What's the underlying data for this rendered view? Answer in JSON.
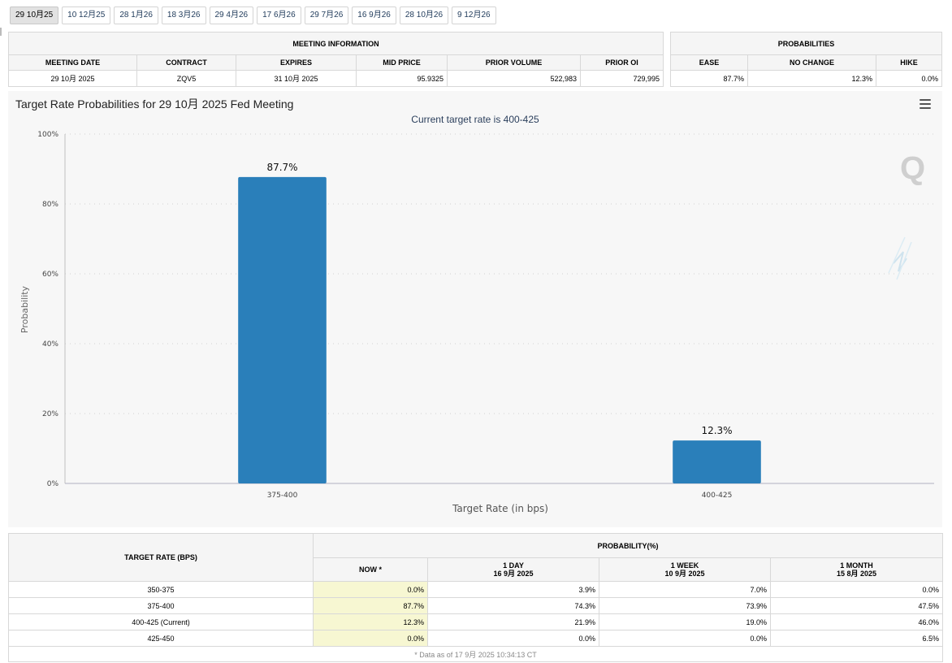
{
  "tabs": [
    "29 10月25",
    "10 12月25",
    "28 1月26",
    "18 3月26",
    "29 4月26",
    "17 6月26",
    "29 7月26",
    "16 9月26",
    "28 10月26",
    "9 12月26"
  ],
  "active_tab": 0,
  "meeting_info": {
    "header": "MEETING INFORMATION",
    "columns": [
      "MEETING DATE",
      "CONTRACT",
      "EXPIRES",
      "MID PRICE",
      "PRIOR VOLUME",
      "PRIOR OI"
    ],
    "row": [
      "29 10月 2025",
      "ZQV5",
      "31 10月 2025",
      "95.9325",
      "522,983",
      "729,995"
    ]
  },
  "probabilities": {
    "header": "PROBABILITIES",
    "columns": [
      "EASE",
      "NO CHANGE",
      "HIKE"
    ],
    "row": [
      "87.7%",
      "12.3%",
      "0.0%"
    ]
  },
  "chart_data": {
    "type": "bar",
    "title": "Target Rate Probabilities for 29 10月 2025 Fed Meeting",
    "subtitle": "Current target rate is 400-425",
    "xlabel": "Target Rate (in bps)",
    "ylabel": "Probability",
    "categories": [
      "375-400",
      "400-425"
    ],
    "values": [
      87.7,
      12.3
    ],
    "data_labels": [
      "87.7%",
      "12.3%"
    ],
    "ylim": [
      0,
      100
    ],
    "yticks": [
      "0%",
      "20%",
      "40%",
      "60%",
      "80%",
      "100%"
    ],
    "grid": true,
    "bar_color": "#2a7fba"
  },
  "target_table": {
    "col_target": "TARGET RATE (BPS)",
    "col_prob": "PROBABILITY(%)",
    "now": "NOW *",
    "day": "1 DAY",
    "day_date": "16 9月 2025",
    "week": "1 WEEK",
    "week_date": "10 9月 2025",
    "month": "1 MONTH",
    "month_date": "15 8月 2025",
    "rows": [
      [
        "350-375",
        "0.0%",
        "3.9%",
        "7.0%",
        "0.0%"
      ],
      [
        "375-400",
        "87.7%",
        "74.3%",
        "73.9%",
        "47.5%"
      ],
      [
        "400-425 (Current)",
        "12.3%",
        "21.9%",
        "19.0%",
        "46.0%"
      ],
      [
        "425-450",
        "0.0%",
        "0.0%",
        "0.0%",
        "6.5%"
      ]
    ],
    "footnote": "* Data as of 17 9月 2025 10:34:13 CT"
  }
}
